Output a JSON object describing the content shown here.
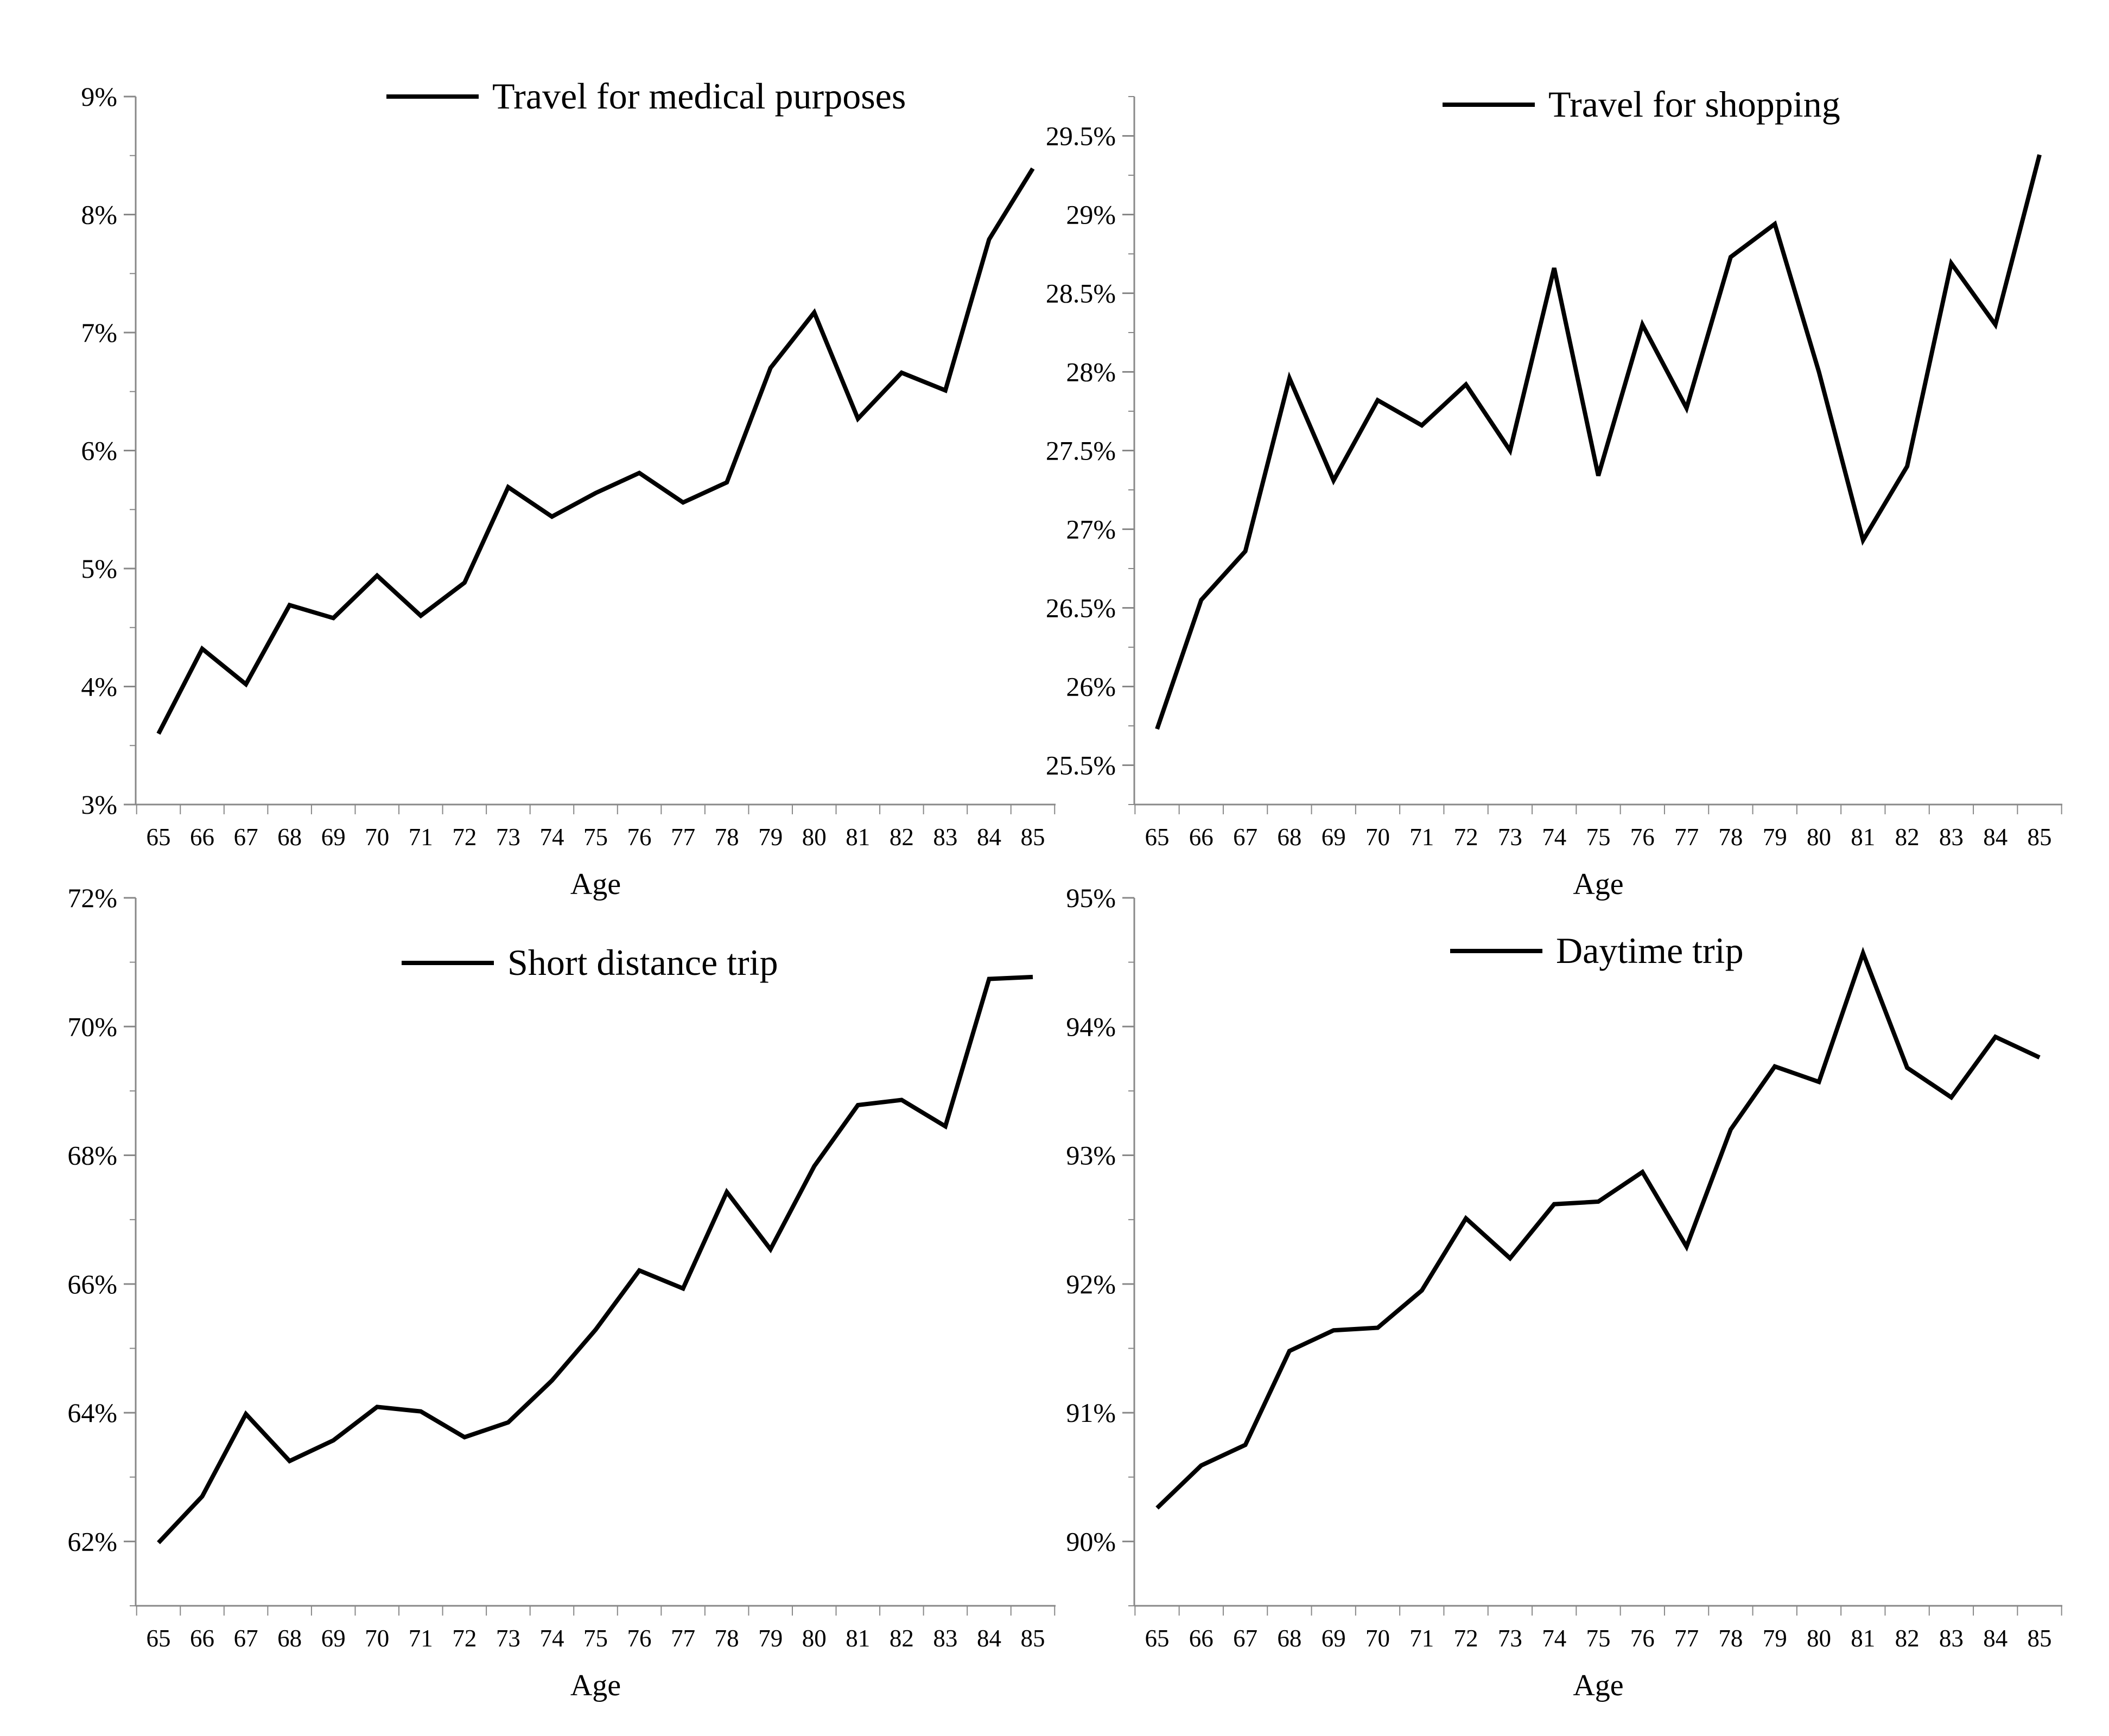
{
  "chart_data": [
    {
      "type": "line",
      "xlabel": "Age",
      "ylabel": "",
      "x": [
        65,
        66,
        67,
        68,
        69,
        70,
        71,
        72,
        73,
        74,
        75,
        76,
        77,
        78,
        79,
        80,
        81,
        82,
        83,
        84,
        85
      ],
      "ylim": [
        3,
        9
      ],
      "yticks": [
        3,
        4,
        5,
        6,
        7,
        8,
        9
      ],
      "yticks_labels": [
        "3%",
        "4%",
        "5%",
        "6%",
        "7%",
        "8%",
        "9%"
      ],
      "legend_position": "top-center",
      "grid": false,
      "series": [
        {
          "name": "Travel for medical purposes",
          "color": "#000000",
          "values": [
            3.6,
            4.32,
            4.02,
            4.69,
            4.58,
            4.94,
            4.6,
            4.88,
            5.69,
            5.44,
            5.64,
            5.81,
            5.56,
            5.73,
            6.7,
            7.17,
            6.27,
            6.66,
            6.51,
            7.79,
            8.39
          ]
        }
      ]
    },
    {
      "type": "line",
      "xlabel": "Age",
      "ylabel": "",
      "x": [
        65,
        66,
        67,
        68,
        69,
        70,
        71,
        72,
        73,
        74,
        75,
        76,
        77,
        78,
        79,
        80,
        81,
        82,
        83,
        84,
        85
      ],
      "ylim": [
        25.25,
        29.75
      ],
      "yticks": [
        25.5,
        26,
        26.5,
        27,
        27.5,
        28,
        28.5,
        29,
        29.5
      ],
      "yticks_labels": [
        "25.5%",
        "26%",
        "26.5%",
        "27%",
        "27.5%",
        "28%",
        "28.5%",
        "29%",
        "29.5%"
      ],
      "legend_position": "top-center",
      "grid": false,
      "series": [
        {
          "name": "Travel for shopping",
          "color": "#000000",
          "values": [
            25.73,
            26.55,
            26.86,
            27.96,
            27.31,
            27.82,
            27.66,
            27.92,
            27.5,
            28.66,
            27.34,
            28.3,
            27.77,
            28.73,
            28.94,
            28.0,
            26.93,
            27.4,
            28.69,
            28.3,
            29.38
          ]
        }
      ]
    },
    {
      "type": "line",
      "xlabel": "Age",
      "ylabel": "",
      "x": [
        65,
        66,
        67,
        68,
        69,
        70,
        71,
        72,
        73,
        74,
        75,
        76,
        77,
        78,
        79,
        80,
        81,
        82,
        83,
        84,
        85
      ],
      "ylim": [
        61,
        72
      ],
      "yticks": [
        62,
        64,
        66,
        68,
        70,
        72
      ],
      "yticks_labels": [
        "62%",
        "64%",
        "66%",
        "68%",
        "70%",
        "72%"
      ],
      "legend_position": "top-center",
      "grid": false,
      "series": [
        {
          "name": "Short distance trip",
          "color": "#000000",
          "values": [
            61.98,
            62.7,
            63.98,
            63.25,
            63.57,
            64.09,
            64.02,
            63.62,
            63.85,
            64.5,
            65.29,
            66.21,
            65.93,
            67.43,
            66.54,
            67.83,
            68.78,
            68.86,
            68.45,
            70.74,
            70.77
          ]
        }
      ]
    },
    {
      "type": "line",
      "xlabel": "Age",
      "ylabel": "",
      "x": [
        65,
        66,
        67,
        68,
        69,
        70,
        71,
        72,
        73,
        74,
        75,
        76,
        77,
        78,
        79,
        80,
        81,
        82,
        83,
        84,
        85
      ],
      "ylim": [
        89.5,
        95
      ],
      "yticks": [
        90,
        91,
        92,
        93,
        94,
        95
      ],
      "yticks_labels": [
        "90%",
        "91%",
        "92%",
        "93%",
        "94%",
        "95%"
      ],
      "legend_position": "top-center",
      "grid": false,
      "series": [
        {
          "name": "Daytime trip",
          "color": "#000000",
          "values": [
            90.26,
            90.59,
            90.75,
            91.48,
            91.64,
            91.66,
            91.95,
            92.51,
            92.2,
            92.62,
            92.64,
            92.87,
            92.29,
            93.2,
            93.69,
            93.57,
            94.57,
            93.68,
            93.45,
            93.92,
            93.76
          ]
        }
      ]
    }
  ]
}
